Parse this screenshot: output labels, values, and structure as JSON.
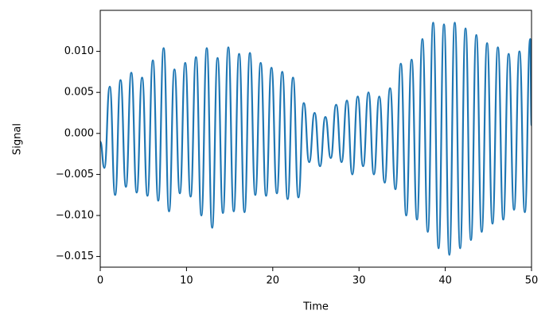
{
  "chart_data": {
    "type": "line",
    "xlabel": "Time",
    "ylabel": "Signal",
    "x": [
      0,
      0.475,
      1.1,
      1.725,
      2.35,
      2.975,
      3.6,
      4.225,
      4.85,
      5.475,
      6.1,
      6.725,
      7.35,
      7.975,
      8.6,
      9.225,
      9.85,
      10.475,
      11.1,
      11.725,
      12.35,
      12.975,
      13.6,
      14.225,
      14.85,
      15.475,
      16.1,
      16.725,
      17.35,
      17.975,
      18.6,
      19.225,
      19.85,
      20.475,
      21.1,
      21.725,
      22.35,
      22.975,
      23.6,
      24.225,
      24.85,
      25.475,
      26.1,
      26.725,
      27.35,
      27.975,
      28.6,
      29.225,
      29.85,
      30.475,
      31.1,
      31.725,
      32.35,
      32.975,
      33.6,
      34.225,
      34.85,
      35.475,
      36.1,
      36.725,
      37.35,
      37.975,
      38.6,
      39.225,
      39.85,
      40.475,
      41.1,
      41.725,
      42.35,
      42.975,
      43.6,
      44.225,
      44.85,
      45.475,
      46.1,
      46.725,
      47.35,
      47.975,
      48.6,
      49.225,
      49.85,
      50
    ],
    "series": [
      {
        "color": "#1f77b4",
        "values": [
          -0.001,
          -0.0042,
          0.0057,
          -0.0075,
          0.0065,
          -0.0065,
          0.0074,
          -0.0072,
          0.0068,
          -0.0076,
          0.0089,
          -0.0082,
          0.0104,
          -0.0095,
          0.0078,
          -0.0073,
          0.0086,
          -0.0077,
          0.0093,
          -0.01,
          0.0104,
          -0.0115,
          0.0092,
          -0.0097,
          0.0105,
          -0.0095,
          0.0097,
          -0.0096,
          0.0098,
          -0.0075,
          0.0086,
          -0.0076,
          0.008,
          -0.0073,
          0.0075,
          -0.008,
          0.0068,
          -0.0078,
          0.0037,
          -0.0035,
          0.0025,
          -0.004,
          0.002,
          -0.003,
          0.0035,
          -0.0035,
          0.004,
          -0.005,
          0.0045,
          -0.004,
          0.005,
          -0.005,
          0.0045,
          -0.006,
          0.0055,
          -0.0068,
          0.0085,
          -0.01,
          0.009,
          -0.0105,
          0.0115,
          -0.012,
          0.0135,
          -0.014,
          0.0133,
          -0.0148,
          0.0135,
          -0.014,
          0.0128,
          -0.013,
          0.012,
          -0.012,
          0.011,
          -0.011,
          0.0105,
          -0.0105,
          0.0097,
          -0.0093,
          0.01,
          -0.0096,
          0.0115,
          0.001
        ]
      }
    ],
    "xlim": [
      0,
      50
    ],
    "xticks": [
      0,
      10,
      20,
      30,
      40,
      50
    ],
    "ylim": [
      -0.0163,
      0.015
    ],
    "yticks": [
      {
        "value": -0.015,
        "label": "−0.015"
      },
      {
        "value": -0.01,
        "label": "−0.010"
      },
      {
        "value": -0.005,
        "label": "−0.005"
      },
      {
        "value": 0,
        "label": "0.000"
      },
      {
        "value": 0.005,
        "label": "0.005"
      },
      {
        "value": 0.01,
        "label": "0.010"
      }
    ],
    "grid": false
  }
}
